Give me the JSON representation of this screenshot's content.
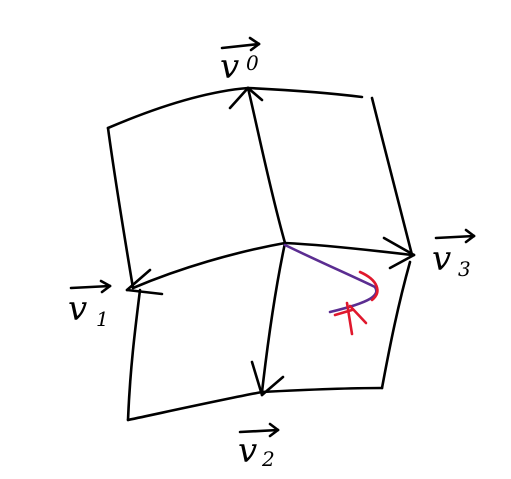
{
  "diagram": {
    "vectors": [
      {
        "id": "v0",
        "letter": "v",
        "subscript": "0"
      },
      {
        "id": "v1",
        "letter": "v",
        "subscript": "1"
      },
      {
        "id": "v2",
        "letter": "v",
        "subscript": "2"
      },
      {
        "id": "v3",
        "letter": "v",
        "subscript": "3"
      }
    ],
    "colors": {
      "ink": "#000000",
      "purple_curve": "#5b2d91",
      "red_mark": "#e0182d"
    }
  }
}
